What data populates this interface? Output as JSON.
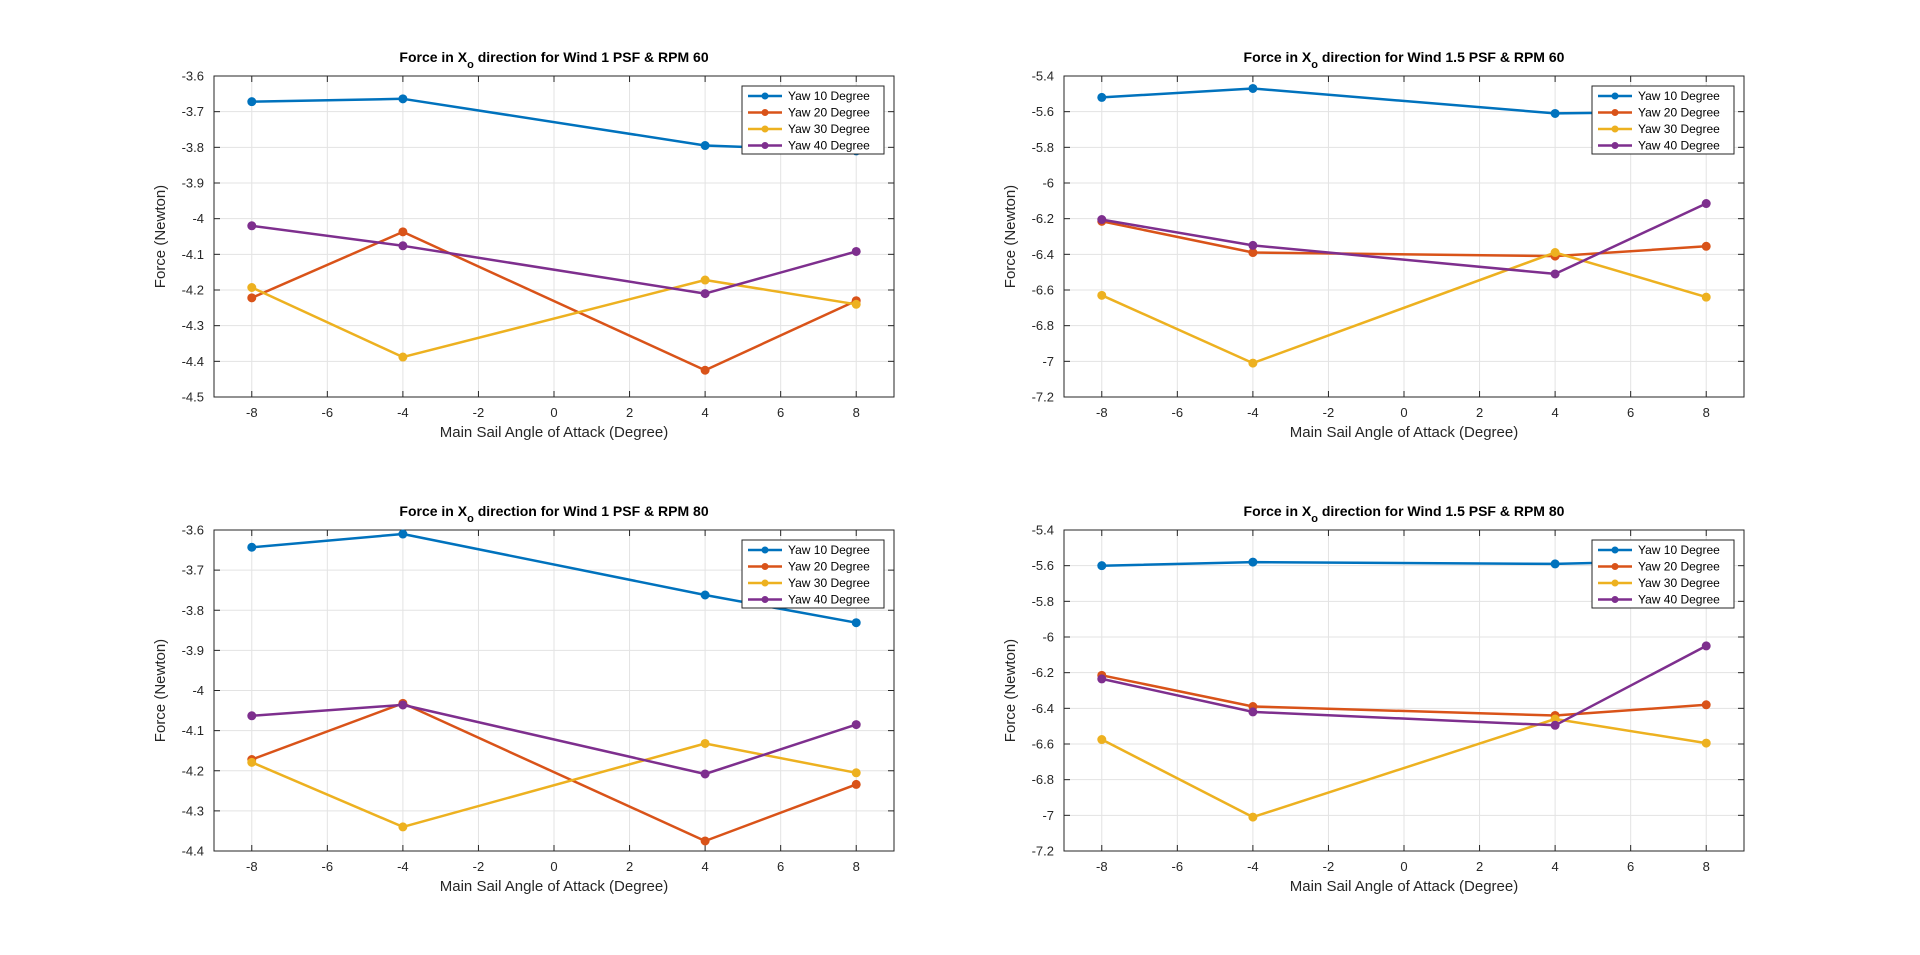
{
  "chart_data": [
    {
      "type": "line",
      "title": {
        "prefix": "Force in X",
        "sub": "o",
        "suffix": " direction for Wind 1 PSF & RPM 60"
      },
      "xlabel": "Main Sail Angle of Attack (Degree)",
      "ylabel": "Force (Newton)",
      "x": [
        -8,
        -4,
        4,
        8
      ],
      "xlim": [
        -9,
        9
      ],
      "xticks": [
        -8,
        -6,
        -4,
        -2,
        0,
        2,
        4,
        6,
        8
      ],
      "ylim": [
        -4.5,
        -3.6
      ],
      "yticks": [
        -4.5,
        -4.4,
        -4.3,
        -4.2,
        -4.1,
        -4,
        -3.9,
        -3.8,
        -3.7,
        -3.6
      ],
      "grid": true,
      "legend_location": "top-right",
      "series": [
        {
          "name": "Yaw 10 Degree",
          "color": "#0072BD",
          "values": [
            -3.672,
            -3.664,
            -3.795,
            -3.81
          ]
        },
        {
          "name": "Yaw 20 Degree",
          "color": "#D95319",
          "values": [
            -4.222,
            -4.037,
            -4.425,
            -4.23
          ]
        },
        {
          "name": "Yaw 30 Degree",
          "color": "#EDB120",
          "values": [
            -4.193,
            -4.388,
            -4.172,
            -4.24
          ]
        },
        {
          "name": "Yaw 40 Degree",
          "color": "#7E2F8E",
          "values": [
            -4.02,
            -4.076,
            -4.21,
            -4.092
          ]
        }
      ]
    },
    {
      "type": "line",
      "title": {
        "prefix": "Force in X",
        "sub": "o",
        "suffix": " direction for Wind 1.5 PSF & RPM 60"
      },
      "xlabel": "Main Sail Angle of Attack (Degree)",
      "ylabel": "Force (Newton)",
      "x": [
        -8,
        -4,
        4,
        8
      ],
      "xlim": [
        -9,
        9
      ],
      "xticks": [
        -8,
        -6,
        -4,
        -2,
        0,
        2,
        4,
        6,
        8
      ],
      "ylim": [
        -7.2,
        -5.4
      ],
      "yticks": [
        -7.2,
        -7,
        -6.8,
        -6.6,
        -6.4,
        -6.2,
        -6,
        -5.8,
        -5.6,
        -5.4
      ],
      "grid": true,
      "legend_location": "top-right",
      "series": [
        {
          "name": "Yaw 10 Degree",
          "color": "#0072BD",
          "values": [
            -5.52,
            -5.47,
            -5.61,
            -5.6
          ]
        },
        {
          "name": "Yaw 20 Degree",
          "color": "#D95319",
          "values": [
            -6.215,
            -6.39,
            -6.41,
            -6.355
          ]
        },
        {
          "name": "Yaw 30 Degree",
          "color": "#EDB120",
          "values": [
            -6.63,
            -7.01,
            -6.39,
            -6.64
          ]
        },
        {
          "name": "Yaw 40 Degree",
          "color": "#7E2F8E",
          "values": [
            -6.205,
            -6.35,
            -6.51,
            -6.115
          ]
        }
      ]
    },
    {
      "type": "line",
      "title": {
        "prefix": "Force in X",
        "sub": "o",
        "suffix": " direction for Wind 1 PSF & RPM 80"
      },
      "xlabel": "Main Sail Angle of Attack (Degree)",
      "ylabel": "Force (Newton)",
      "x": [
        -8,
        -4,
        4,
        8
      ],
      "xlim": [
        -9,
        9
      ],
      "xticks": [
        -8,
        -6,
        -4,
        -2,
        0,
        2,
        4,
        6,
        8
      ],
      "ylim": [
        -4.4,
        -3.6
      ],
      "yticks": [
        -4.4,
        -4.3,
        -4.2,
        -4.1,
        -4,
        -3.9,
        -3.8,
        -3.7,
        -3.6
      ],
      "grid": true,
      "legend_location": "top-right",
      "series": [
        {
          "name": "Yaw 10 Degree",
          "color": "#0072BD",
          "values": [
            -3.643,
            -3.61,
            -3.762,
            -3.831
          ]
        },
        {
          "name": "Yaw 20 Degree",
          "color": "#D95319",
          "values": [
            -4.172,
            -4.032,
            -4.375,
            -4.234
          ]
        },
        {
          "name": "Yaw 30 Degree",
          "color": "#EDB120",
          "values": [
            -4.179,
            -4.34,
            -4.132,
            -4.205
          ]
        },
        {
          "name": "Yaw 40 Degree",
          "color": "#7E2F8E",
          "values": [
            -4.063,
            -4.036,
            -4.208,
            -4.085
          ]
        }
      ]
    },
    {
      "type": "line",
      "title": {
        "prefix": "Force in X",
        "sub": "o",
        "suffix": " direction for Wind 1.5 PSF & RPM 80"
      },
      "xlabel": "Main Sail Angle of Attack (Degree)",
      "ylabel": "Force (Newton)",
      "x": [
        -8,
        -4,
        4,
        8
      ],
      "xlim": [
        -9,
        9
      ],
      "xticks": [
        -8,
        -6,
        -4,
        -2,
        0,
        2,
        4,
        6,
        8
      ],
      "ylim": [
        -7.2,
        -5.4
      ],
      "yticks": [
        -7.2,
        -7,
        -6.8,
        -6.6,
        -6.4,
        -6.2,
        -6,
        -5.8,
        -5.6,
        -5.4
      ],
      "grid": true,
      "legend_location": "top-right",
      "series": [
        {
          "name": "Yaw 10 Degree",
          "color": "#0072BD",
          "values": [
            -5.6,
            -5.58,
            -5.59,
            -5.57
          ]
        },
        {
          "name": "Yaw 20 Degree",
          "color": "#D95319",
          "values": [
            -6.215,
            -6.39,
            -6.44,
            -6.38
          ]
        },
        {
          "name": "Yaw 30 Degree",
          "color": "#EDB120",
          "values": [
            -6.575,
            -7.01,
            -6.46,
            -6.595
          ]
        },
        {
          "name": "Yaw 40 Degree",
          "color": "#7E2F8E",
          "values": [
            -6.235,
            -6.42,
            -6.495,
            -6.05
          ]
        }
      ]
    }
  ]
}
